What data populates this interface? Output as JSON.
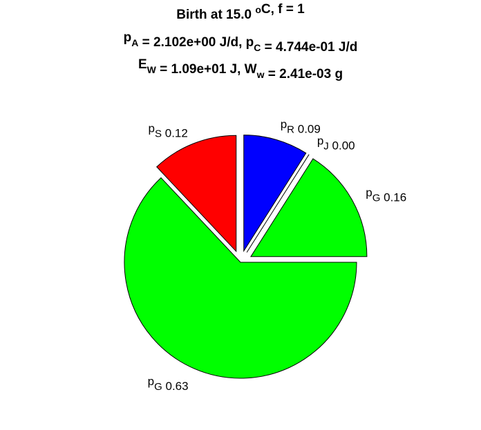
{
  "chart_data": {
    "type": "pie",
    "title_lines": [
      [
        "Birth at 15.0 ",
        {
          "sup": "o"
        },
        "C, f = 1"
      ],
      [
        "p",
        {
          "sub": "A"
        },
        " = 2.102e+00 J/d, p",
        {
          "sub": "C"
        },
        " = 4.744e-01 J/d"
      ],
      [
        "E",
        {
          "sub": "W"
        },
        " = 1.09e+01 J, W",
        {
          "sub": "w"
        },
        " = 2.41e-03 g"
      ]
    ],
    "labels": [
      [
        "p",
        {
          "sub": "R"
        }
      ],
      [
        "p",
        {
          "sub": "J"
        }
      ],
      [
        "p",
        {
          "sub": "G"
        }
      ],
      [
        "p",
        {
          "sub": "G"
        }
      ],
      [
        "p",
        {
          "sub": "S"
        }
      ]
    ],
    "values": [
      0.09,
      0.0,
      0.16,
      0.63,
      0.12
    ],
    "value_labels": [
      "0.09",
      "0.00",
      "0.16",
      "0.63",
      "0.12"
    ],
    "colors": [
      "#0000ff",
      "#ffffff",
      "#00ff00",
      "#00ff00",
      "#ff0000"
    ],
    "explode": [
      1,
      1,
      1,
      0,
      1
    ]
  }
}
